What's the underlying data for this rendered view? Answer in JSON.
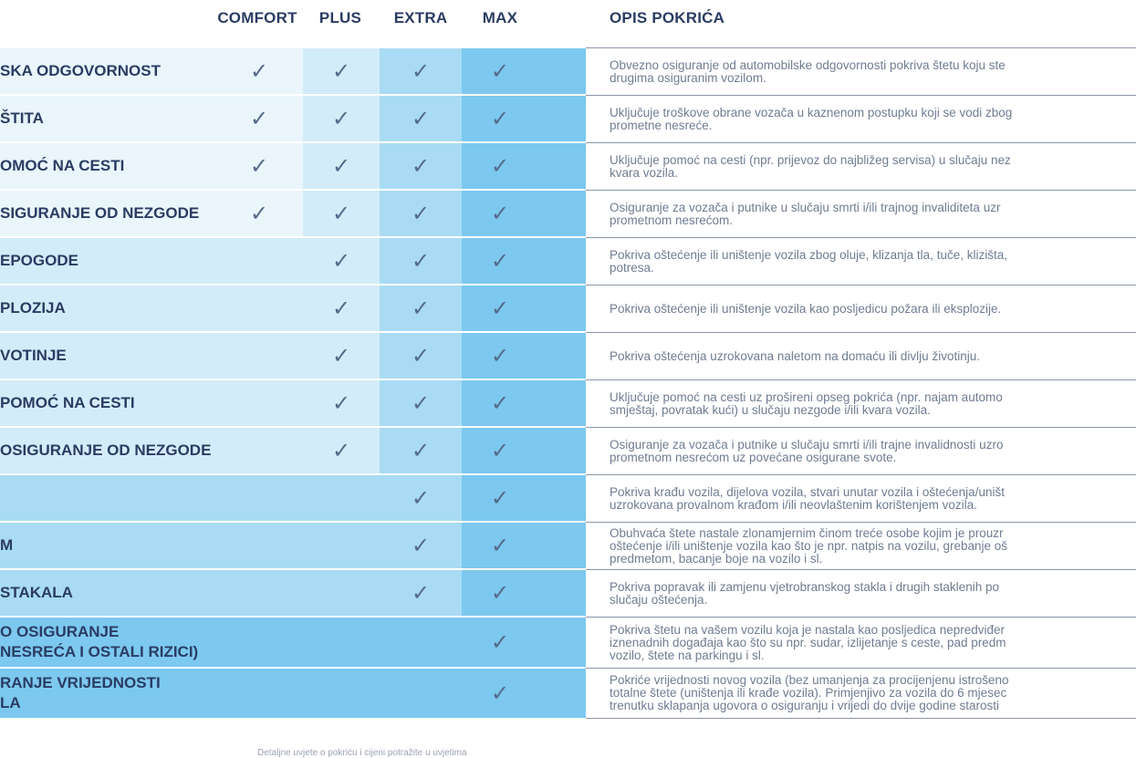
{
  "headers": {
    "comfort": "COMFORT",
    "plus": "PLUS",
    "extra": "EXTRA",
    "max": "MAX",
    "opis": "OPIS POKRIĆA"
  },
  "check_symbol": "✓",
  "colors": {
    "text_dark": "#2a3c63",
    "desc_text": "#6f7c92",
    "comfort_band": "#eaf5fc",
    "plus_band": "#d3ecf9",
    "extra_band": "#a9dbf4",
    "max_band": "#7cc8ef"
  },
  "rows": [
    {
      "label": "SKA ODGOVORNOST",
      "tier_start": "comfort",
      "comfort": "✓",
      "plus": "✓",
      "extra": "✓",
      "max": "✓",
      "desc": "Obvezno osiguranje od automobilske odgovornosti pokriva štetu koju ste\ndrugima osiguranim vozilom."
    },
    {
      "label": "ŠTITA",
      "tier_start": "comfort",
      "comfort": "✓",
      "plus": "✓",
      "extra": "✓",
      "max": "✓",
      "desc": "Uključuje troškove obrane vozača u kaznenom postupku koji se vodi zbog\nprometne nesreće."
    },
    {
      "label": "OMOĆ NA CESTI",
      "tier_start": "comfort",
      "comfort": "✓",
      "plus": "✓",
      "extra": "✓",
      "max": "✓",
      "desc": "Uključuje pomoć na cesti (npr. prijevoz do najbližeg servisa) u slučaju nez\nkvara vozila."
    },
    {
      "label": "SIGURANJE OD NEZGODE",
      "tier_start": "comfort",
      "comfort": "✓",
      "plus": "✓",
      "extra": "✓",
      "max": "✓",
      "desc": "Osiguranje za vozača i putnike u slučaju smrti i/ili trajnog invaliditeta uzr\nprometnom nesrećom."
    },
    {
      "label": "EPOGODE",
      "tier_start": "plus",
      "comfort": "",
      "plus": "✓",
      "extra": "✓",
      "max": "✓",
      "desc": "Pokriva oštećenje ili uništenje vozila zbog oluje, klizanja tla, tuče, klizišta,\npotresa."
    },
    {
      "label": "PLOZIJA",
      "tier_start": "plus",
      "comfort": "",
      "plus": "✓",
      "extra": "✓",
      "max": "✓",
      "desc": "Pokriva oštećenje ili uništenje vozila kao posljedicu požara ili eksplozije."
    },
    {
      "label": "VOTINJE",
      "tier_start": "plus",
      "comfort": "",
      "plus": "✓",
      "extra": "✓",
      "max": "✓",
      "desc": "Pokriva oštećenja uzrokovana naletom na domaću ili divlju životinju."
    },
    {
      "label": "POMOĆ NA CESTI",
      "tier_start": "plus",
      "comfort": "",
      "plus": "✓",
      "extra": "✓",
      "max": "✓",
      "desc": "Uključuje pomoć na cesti uz prošireni opseg pokrića (npr. najam automo\nsmještaj, povratak kući) u slučaju nezgode i/ili kvara vozila."
    },
    {
      "label": "OSIGURANJE OD NEZGODE",
      "tier_start": "plus",
      "comfort": "",
      "plus": "✓",
      "extra": "✓",
      "max": "✓",
      "desc": "Osiguranje za vozača i putnike u slučaju smrti i/ili trajne invalidnosti uzro\nprometnom nesrećom uz povećane osigurane svote."
    },
    {
      "label": "",
      "tier_start": "extra",
      "comfort": "",
      "plus": "",
      "extra": "✓",
      "max": "✓",
      "desc": "Pokriva krađu vozila, dijelova vozila, stvari unutar vozila i oštećenja/uništ\nuzrokovana provalnom krađom i/ili neovlaštenim korištenjem vozila."
    },
    {
      "label": "M",
      "tier_start": "extra",
      "comfort": "",
      "plus": "",
      "extra": "✓",
      "max": "✓",
      "desc": "Obuhvaća štete nastale zlonamjernim činom treće osobe kojim je prouzr\noštećenje i/ili uništenje vozila kao što je npr. natpis na vozilu, grebanje oš\npredmetom, bacanje boje na vozilo i sl."
    },
    {
      "label": "STAKALA",
      "tier_start": "extra",
      "comfort": "",
      "plus": "",
      "extra": "✓",
      "max": "✓",
      "desc": "Pokriva popravak ili zamjenu vjetrobranskog stakla i drugih staklenih po\nslučaju oštećenja."
    },
    {
      "label": "O OSIGURANJE\nNESREĆA I OSTALI RIZICI)",
      "tier_start": "max",
      "comfort": "",
      "plus": "",
      "extra": "",
      "max": "✓",
      "desc": "Pokriva štetu na vašem vozilu koja je nastala kao posljedica nepredviđer\niznenadnih događaja kao što su npr. sudar, izlijetanje s ceste, pad predm\nvozilo, štete na parkingu i sl."
    },
    {
      "label": "RANJE VRIJEDNOSTI\nLA",
      "tier_start": "max",
      "comfort": "",
      "plus": "",
      "extra": "",
      "max": "✓",
      "desc": "Pokriće vrijednosti novog vozila (bez umanjenja za procijenjenu istrošeno\ntotalne štete (uništenja ili krađe vozila). Primjenjivo za vozila do 6 mjesec\ntrenutku sklapanja ugovora o osiguranju i vrijedi do dvije godine starosti"
    }
  ],
  "footer_note": "Detaljne uvjete o pokriću i cijeni potražite u uvjetima"
}
